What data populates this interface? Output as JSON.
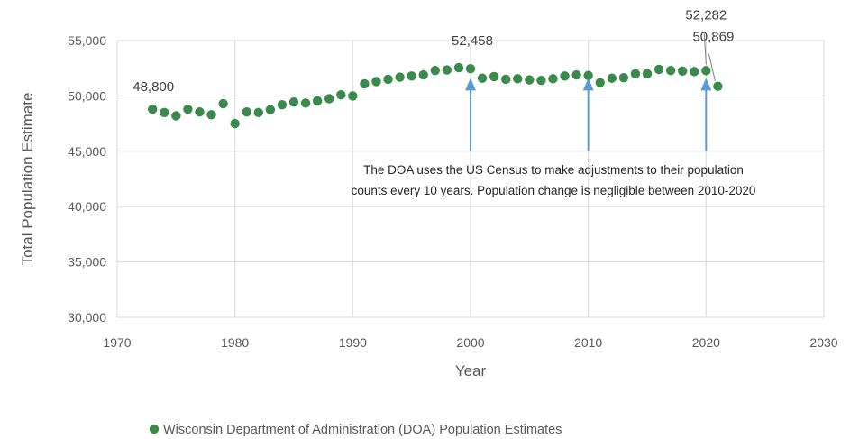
{
  "chart_data": {
    "type": "scatter",
    "title": "",
    "xlabel": "Year",
    "ylabel": "Total Population Estimate",
    "xlim": [
      1970,
      2030
    ],
    "ylim": [
      30000,
      55000
    ],
    "x_ticks": [
      "1970",
      "1980",
      "1990",
      "2000",
      "2010",
      "2020",
      "2030"
    ],
    "y_ticks": [
      "30,000",
      "35,000",
      "40,000",
      "45,000",
      "50,000",
      "55,000"
    ],
    "grid": "both",
    "legend_position": "bottom",
    "series": [
      {
        "name": "Wisconsin Department of Administration (DOA) Population Estimates",
        "color": "#3a8a4c",
        "points": [
          [
            1973,
            48800
          ],
          [
            1974,
            48500
          ],
          [
            1975,
            48200
          ],
          [
            1976,
            48800
          ],
          [
            1977,
            48550
          ],
          [
            1978,
            48300
          ],
          [
            1979,
            49300
          ],
          [
            1980,
            47500
          ],
          [
            1981,
            48550
          ],
          [
            1982,
            48500
          ],
          [
            1983,
            48750
          ],
          [
            1984,
            49200
          ],
          [
            1985,
            49450
          ],
          [
            1986,
            49350
          ],
          [
            1987,
            49550
          ],
          [
            1988,
            49750
          ],
          [
            1989,
            50100
          ],
          [
            1990,
            50000
          ],
          [
            1991,
            51100
          ],
          [
            1992,
            51300
          ],
          [
            1993,
            51500
          ],
          [
            1994,
            51700
          ],
          [
            1995,
            51800
          ],
          [
            1996,
            51900
          ],
          [
            1997,
            52300
          ],
          [
            1998,
            52350
          ],
          [
            1999,
            52550
          ],
          [
            2000,
            52458
          ],
          [
            2001,
            51600
          ],
          [
            2002,
            51750
          ],
          [
            2003,
            51500
          ],
          [
            2004,
            51550
          ],
          [
            2005,
            51450
          ],
          [
            2006,
            51400
          ],
          [
            2007,
            51550
          ],
          [
            2008,
            51800
          ],
          [
            2009,
            51900
          ],
          [
            2010,
            51850
          ],
          [
            2011,
            51200
          ],
          [
            2012,
            51600
          ],
          [
            2013,
            51650
          ],
          [
            2014,
            52000
          ],
          [
            2015,
            52000
          ],
          [
            2016,
            52400
          ],
          [
            2017,
            52300
          ],
          [
            2018,
            52250
          ],
          [
            2019,
            52200
          ],
          [
            2020,
            52282
          ],
          [
            2021,
            50869
          ]
        ]
      }
    ],
    "data_labels": [
      {
        "text": "48,800",
        "x": 1973,
        "y": 48800
      },
      {
        "text": "52,458",
        "x": 2000,
        "y": 52458
      },
      {
        "text": "52,282",
        "x": 2020,
        "y": 52282
      },
      {
        "text": "50,869",
        "x": 2021,
        "y": 50869
      }
    ],
    "arrows": [
      {
        "x": 2000,
        "y_from": 45000,
        "y_to": 51300
      },
      {
        "x": 2010,
        "y_from": 45000,
        "y_to": 51300
      },
      {
        "x": 2020,
        "y_from": 45000,
        "y_to": 51300
      }
    ],
    "annotation": [
      "The DOA uses the US Census to make adjustments to their population",
      "counts every 10 years. Population change is negligible between 2010-2020"
    ],
    "arrow_color": "#5b9bd5"
  }
}
